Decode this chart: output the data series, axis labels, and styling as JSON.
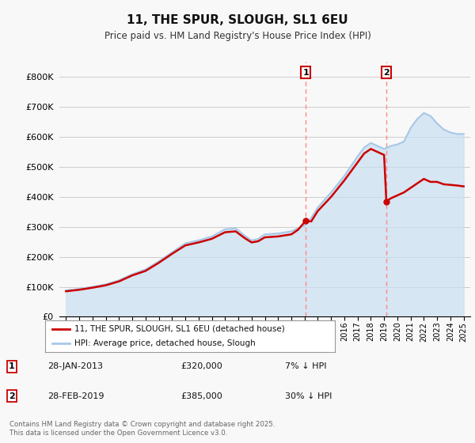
{
  "title": "11, THE SPUR, SLOUGH, SL1 6EU",
  "subtitle": "Price paid vs. HM Land Registry's House Price Index (HPI)",
  "footer": "Contains HM Land Registry data © Crown copyright and database right 2025.\nThis data is licensed under the Open Government Licence v3.0.",
  "legend_entry1": "11, THE SPUR, SLOUGH, SL1 6EU (detached house)",
  "legend_entry2": "HPI: Average price, detached house, Slough",
  "annotation1_label": "1",
  "annotation1_date": "28-JAN-2013",
  "annotation1_price": "£320,000",
  "annotation1_hpi": "7% ↓ HPI",
  "annotation2_label": "2",
  "annotation2_date": "28-FEB-2019",
  "annotation2_price": "£385,000",
  "annotation2_hpi": "30% ↓ HPI",
  "hpi_line_color": "#a8c8e8",
  "hpi_fill_color": "#c8dff0",
  "price_color": "#cc0000",
  "vline_color": "#ff8888",
  "background_color": "#f8f8f8",
  "grid_color": "#cccccc",
  "ylim": [
    0,
    850000
  ],
  "yticks": [
    0,
    100000,
    200000,
    300000,
    400000,
    500000,
    600000,
    700000,
    800000
  ],
  "hpi_x": [
    1995.0,
    1996.0,
    1997.0,
    1998.0,
    1999.0,
    2000.0,
    2001.0,
    2002.0,
    2003.0,
    2004.0,
    2005.0,
    2006.0,
    2007.0,
    2007.8,
    2008.5,
    2009.0,
    2009.5,
    2010.0,
    2011.0,
    2012.0,
    2013.0,
    2013.5,
    2014.0,
    2015.0,
    2016.0,
    2017.0,
    2017.5,
    2018.0,
    2018.5,
    2019.0,
    2019.5,
    2020.0,
    2020.5,
    2021.0,
    2021.5,
    2022.0,
    2022.5,
    2023.0,
    2023.5,
    2024.0,
    2024.5,
    2025.0
  ],
  "hpi_y": [
    88000,
    93000,
    100000,
    108000,
    122000,
    142000,
    158000,
    185000,
    215000,
    245000,
    255000,
    268000,
    292000,
    295000,
    270000,
    255000,
    260000,
    275000,
    278000,
    285000,
    305000,
    330000,
    365000,
    415000,
    470000,
    535000,
    565000,
    580000,
    570000,
    560000,
    570000,
    575000,
    585000,
    630000,
    660000,
    680000,
    670000,
    645000,
    625000,
    615000,
    610000,
    610000
  ],
  "price_x": [
    1995.0,
    1996.0,
    1997.0,
    1998.0,
    1999.0,
    2000.0,
    2001.0,
    2002.0,
    2003.0,
    2004.0,
    2005.0,
    2006.0,
    2007.0,
    2007.8,
    2008.5,
    2009.0,
    2009.5,
    2010.0,
    2011.0,
    2012.0,
    2012.5,
    2013.08,
    2013.5,
    2014.0,
    2015.0,
    2016.0,
    2017.0,
    2017.5,
    2018.0,
    2018.5,
    2019.0,
    2019.17,
    2019.5,
    2020.0,
    2020.5,
    2021.0,
    2021.5,
    2022.0,
    2022.5,
    2023.0,
    2023.5,
    2024.0,
    2024.5,
    2025.0
  ],
  "price_y": [
    85000,
    90000,
    97000,
    105000,
    118000,
    138000,
    153000,
    180000,
    210000,
    238000,
    248000,
    260000,
    282000,
    285000,
    262000,
    248000,
    252000,
    265000,
    268000,
    275000,
    290000,
    320000,
    318000,
    353000,
    400000,
    455000,
    515000,
    545000,
    560000,
    550000,
    540000,
    385000,
    395000,
    405000,
    415000,
    430000,
    445000,
    460000,
    450000,
    450000,
    442000,
    440000,
    438000,
    435000
  ],
  "sale1_year": 2013.08,
  "sale1_price": 320000,
  "sale2_year": 2019.17,
  "sale2_price": 385000,
  "vline1_year": 2013.08,
  "vline2_year": 2019.17
}
